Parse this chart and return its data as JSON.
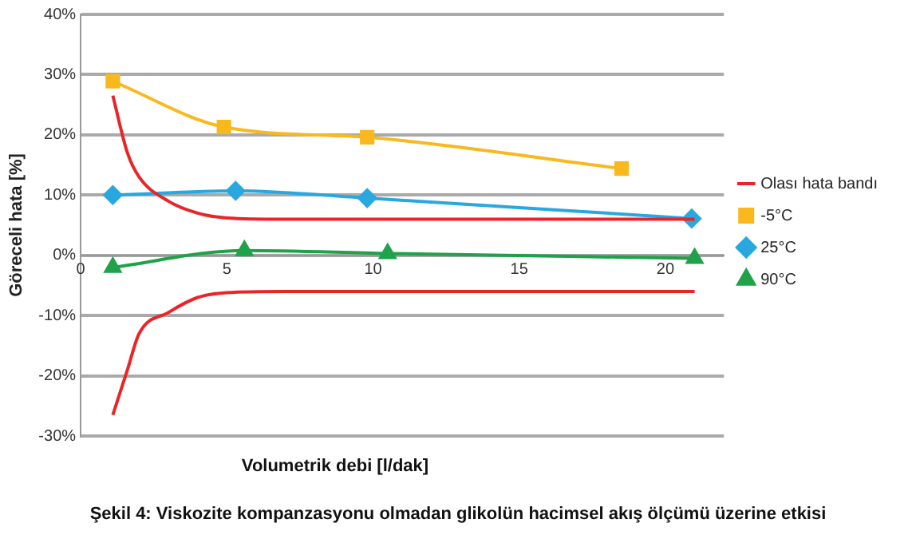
{
  "chart_data": {
    "type": "line",
    "xlabel": "Volumetrik debi [l/dak]",
    "ylabel": "Göreceli hata [%]",
    "title": "Şekil 4: Viskozite kompanzasyonu olmadan glikolün hacimsel akış ölçümü üzerine etkisi",
    "xlim": [
      0,
      22
    ],
    "xticks": [
      0,
      5,
      10,
      15,
      20
    ],
    "ylim": [
      -30,
      40
    ],
    "yticks": [
      {
        "value": -30,
        "label": "-30%"
      },
      {
        "value": -20,
        "label": "-20%"
      },
      {
        "value": -10,
        "label": "-10%"
      },
      {
        "value": 0,
        "label": "0%"
      },
      {
        "value": 10,
        "label": "10%"
      },
      {
        "value": 20,
        "label": "20%"
      },
      {
        "value": 30,
        "label": "30%"
      },
      {
        "value": 40,
        "label": "40%"
      }
    ],
    "grid": "y",
    "legend": "right",
    "series": [
      {
        "name": "Olası hata bandı",
        "color": "#e8262a",
        "marker": "none",
        "x": [
          1.1,
          1.6,
          2,
          3,
          4,
          5,
          7,
          21
        ],
        "values": [
          26.5,
          17,
          13,
          9,
          7,
          6.2,
          6,
          6
        ]
      },
      {
        "color": "#e8262a",
        "marker": "none",
        "x": [
          1.1,
          1.6,
          2,
          3,
          4,
          5,
          7,
          21
        ],
        "values": [
          -26.5,
          -19,
          -13,
          -9.5,
          -7,
          -6.2,
          -6,
          -6
        ]
      },
      {
        "name": "-5°C",
        "color": "#f8b81e",
        "marker": "square",
        "x": [
          1.1,
          4.9,
          9.8,
          18.5
        ],
        "values": [
          28.9,
          21.3,
          19.6,
          14.4
        ]
      },
      {
        "name": "25°C",
        "color": "#29a8e0",
        "marker": "diamond",
        "x": [
          1.1,
          5.3,
          9.8,
          20.9
        ],
        "values": [
          10,
          10.7,
          9.5,
          6.1
        ]
      },
      {
        "name": "90°C",
        "color": "#1fa24a",
        "marker": "triangle",
        "x": [
          1.1,
          5.6,
          10.5,
          21
        ],
        "values": [
          -2,
          0.8,
          0.3,
          -0.5
        ]
      }
    ]
  }
}
